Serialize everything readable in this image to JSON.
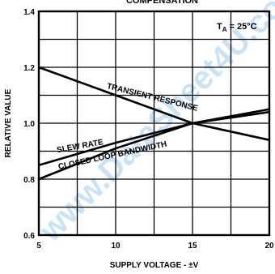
{
  "chart_data": {
    "type": "line",
    "title": "",
    "top_caption": "COMPENSATION",
    "xlabel": "SUPPLY VOLTAGE - ±V",
    "ylabel": "RELATIVE VALUE",
    "xlim": [
      5,
      20
    ],
    "ylim": [
      0.6,
      1.4
    ],
    "x_ticks": [
      5,
      10,
      15,
      20
    ],
    "x_tick_labels": [
      "5",
      "10",
      "15",
      "20"
    ],
    "y_ticks": [
      0.6,
      0.8,
      1.0,
      1.2,
      1.4
    ],
    "y_tick_labels": [
      "0.6",
      "0.8",
      "1.0",
      "1.2",
      "1.4"
    ],
    "x_grid_step": 2.5,
    "y_grid_step": 0.1,
    "grid": true,
    "annotation": "T_A = 25°C",
    "annotation_main": "T",
    "annotation_sub": "A",
    "annotation_rest": " = 25°C",
    "series": [
      {
        "name": "TRANSIENT RESPONSE",
        "x": [
          5,
          10,
          15,
          20
        ],
        "y": [
          1.2,
          1.1,
          1.0,
          0.94
        ]
      },
      {
        "name": "SLEW RATE",
        "x": [
          5,
          10,
          15,
          20
        ],
        "y": [
          0.85,
          0.93,
          1.0,
          1.05
        ]
      },
      {
        "name": "CLOSED LOOP BANDWIDTH",
        "x": [
          5,
          10,
          15,
          20
        ],
        "y": [
          0.8,
          0.91,
          1.0,
          1.04
        ]
      }
    ],
    "watermark": "www.DataSheet4U.com"
  }
}
